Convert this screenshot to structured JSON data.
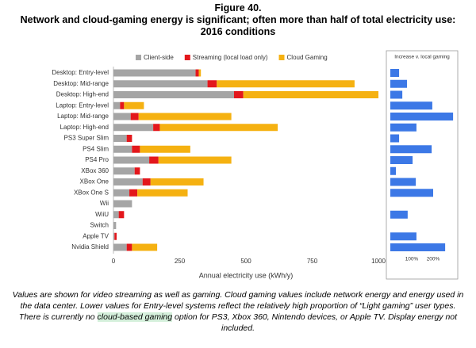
{
  "figure": "Figure 40.",
  "title": "Network and cloud-gaming energy is significant; often more than half of total electricity use: 2016 conditions",
  "caption": [
    "Values are shown for video streaming as well as gaming. Cloud gaming values include network energy and energy used in the data center. Lower values for Entry-level systems reflect the relatively high proportion of “Light gaming” user types. There is currently no ",
    "cloud-based gaming",
    " option for PS3, Xbox 360, Nintendo devices, or Apple TV. Display energy not included."
  ],
  "chart_data": [
    {
      "type": "bar",
      "orientation": "horizontal",
      "stacked": true,
      "categories": [
        "Desktop: Entry-level",
        "Desktop: Mid-range",
        "Desktop: High-end",
        "Laptop: Entry-level",
        "Laptop: Mid-range",
        "Laptop: High-end",
        "PS3 Super Slim",
        "PS4 Slim",
        "PS4 Pro",
        "XBox 360",
        "XBox One",
        "XBox One S",
        "Wii",
        "WiiU",
        "Switch",
        "Apple TV",
        "Nvidia Shield"
      ],
      "series": [
        {
          "name": "Client-side",
          "color": "#a5a5a5",
          "values": [
            310,
            355,
            455,
            25,
            65,
            150,
            50,
            70,
            135,
            80,
            110,
            60,
            70,
            20,
            10,
            4,
            50
          ]
        },
        {
          "name": "Streaming (local load only)",
          "color": "#e3171c",
          "values": [
            12,
            35,
            35,
            15,
            30,
            25,
            20,
            30,
            35,
            20,
            30,
            30,
            0,
            20,
            0,
            8,
            20
          ]
        },
        {
          "name": "Cloud Gaming",
          "color": "#f5b111",
          "values": [
            8,
            520,
            510,
            75,
            350,
            445,
            0,
            190,
            275,
            0,
            200,
            190,
            0,
            0,
            0,
            0,
            95
          ]
        }
      ],
      "xlabel": "Annual electricity use (kWh/y)",
      "xlim": [
        0,
        1000
      ],
      "xticks": [
        0,
        250,
        500,
        750,
        1000
      ],
      "grid": false,
      "legend": "top"
    },
    {
      "type": "bar",
      "orientation": "horizontal",
      "title": "Increase v. local gaming",
      "color": "#3c78e6",
      "values": [
        41,
        78,
        56,
        196,
        293,
        122,
        41,
        193,
        104,
        26,
        119,
        200,
        null,
        81,
        null,
        122,
        256
      ],
      "xlim": [
        0,
        300
      ],
      "xticks": [
        {
          "value": 100,
          "label": "100%"
        },
        {
          "value": 200,
          "label": "200%"
        }
      ]
    }
  ]
}
